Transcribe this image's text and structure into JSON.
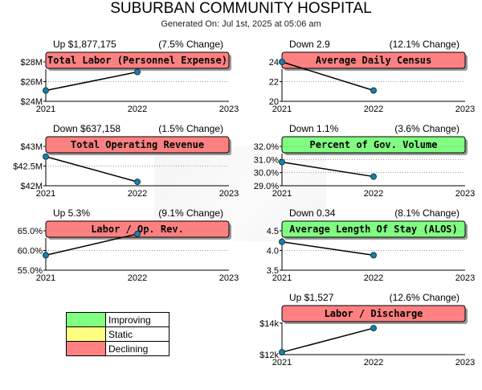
{
  "header": {
    "title": "SUBURBAN COMMUNITY HOSPITAL",
    "generated": "Generated On: Jul 1st, 2025 at 05:06 am"
  },
  "legend": [
    {
      "label": "Improving",
      "color": "#80ff80"
    },
    {
      "label": "Static",
      "color": "#ffff80"
    },
    {
      "label": "Declining",
      "color": "#ff8080"
    }
  ],
  "chart_data": [
    {
      "type": "line",
      "title": "Total Labor (Personnel Expense)",
      "delta": "Up $1,877,175",
      "pct": "(7.5% Change)",
      "status": "declining",
      "x": [
        2021,
        2022
      ],
      "xticks": [
        "2021",
        "2022",
        "2023"
      ],
      "values": [
        25100000,
        26980000
      ],
      "ylim": [
        24000000,
        28000000
      ],
      "yticks": [
        {
          "v": 28000000,
          "t": "$28M"
        },
        {
          "v": 26000000,
          "t": "$26M"
        },
        {
          "v": 24000000,
          "t": "$24M"
        }
      ]
    },
    {
      "type": "line",
      "title": "Average Daily Census",
      "delta": "Down 2.9",
      "pct": "(12.1% Change)",
      "status": "declining",
      "x": [
        2021,
        2022
      ],
      "xticks": [
        "2021",
        "2022",
        "2023"
      ],
      "values": [
        24.0,
        21.1
      ],
      "ylim": [
        20,
        24
      ],
      "yticks": [
        {
          "v": 24,
          "t": "24"
        },
        {
          "v": 22,
          "t": "22"
        },
        {
          "v": 20,
          "t": "20"
        }
      ]
    },
    {
      "type": "line",
      "title": "Total Operating Revenue",
      "delta": "Down $637,158",
      "pct": "(1.5% Change)",
      "status": "declining",
      "x": [
        2021,
        2022
      ],
      "xticks": [
        "2021",
        "2022",
        "2023"
      ],
      "values": [
        42740000,
        42100000
      ],
      "ylim": [
        42000000,
        43000000
      ],
      "yticks": [
        {
          "v": 43000000,
          "t": "$43M"
        },
        {
          "v": 42500000,
          "t": "$42.5M"
        },
        {
          "v": 42000000,
          "t": "$42M"
        }
      ]
    },
    {
      "type": "line",
      "title": "Percent of Gov. Volume",
      "delta": "Down 1.1%",
      "pct": "(3.6% Change)",
      "status": "improving",
      "x": [
        2021,
        2022
      ],
      "xticks": [
        "2021",
        "2022",
        "2023"
      ],
      "values": [
        30.8,
        29.7
      ],
      "ylim": [
        29.0,
        32.0
      ],
      "yticks": [
        {
          "v": 32.0,
          "t": "32.0%"
        },
        {
          "v": 31.0,
          "t": "31.0%"
        },
        {
          "v": 30.0,
          "t": "30.0%"
        },
        {
          "v": 29.0,
          "t": "29.0%"
        }
      ]
    },
    {
      "type": "line",
      "title": "Labor / Op. Rev.",
      "delta": "Up 5.3%",
      "pct": "(9.1% Change)",
      "status": "declining",
      "x": [
        2021,
        2022
      ],
      "xticks": [
        "2021",
        "2022",
        "2023"
      ],
      "values": [
        58.8,
        64.2
      ],
      "ylim": [
        55.0,
        65.0
      ],
      "yticks": [
        {
          "v": 65.0,
          "t": "65.0%"
        },
        {
          "v": 60.0,
          "t": "60.0%"
        },
        {
          "v": 55.0,
          "t": "55.0%"
        }
      ]
    },
    {
      "type": "line",
      "title": "Average Length Of Stay (ALOS)",
      "delta": "Down 0.34",
      "pct": "(8.1% Change)",
      "status": "improving",
      "x": [
        2021,
        2022
      ],
      "xticks": [
        "2021",
        "2022",
        "2023"
      ],
      "values": [
        4.22,
        3.88
      ],
      "ylim": [
        3.5,
        4.5
      ],
      "yticks": [
        {
          "v": 4.5,
          "t": "4.5"
        },
        {
          "v": 4.0,
          "t": "4.0"
        },
        {
          "v": 3.5,
          "t": "3.5"
        }
      ]
    },
    {
      "type": "line",
      "title": "Labor / Discharge",
      "delta": "Up $1,527",
      "pct": "(12.6% Change)",
      "status": "declining",
      "x": [
        2021,
        2022
      ],
      "xticks": [
        "2021",
        "2022",
        "2023"
      ],
      "values": [
        12150,
        13680
      ],
      "ylim": [
        12000,
        14500
      ],
      "yticks": [
        {
          "v": 14000,
          "t": "$14k"
        },
        {
          "v": 12000,
          "t": "$12k"
        }
      ]
    }
  ]
}
